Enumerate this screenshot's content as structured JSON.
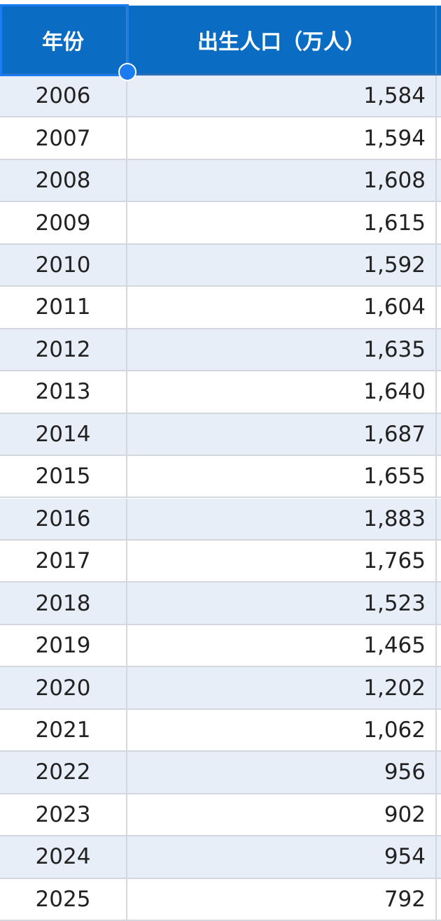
{
  "table": {
    "headers": [
      "年份",
      "出生人口（万人）"
    ],
    "rows": [
      [
        "2006",
        "1,584"
      ],
      [
        "2007",
        "1,594"
      ],
      [
        "2008",
        "1,608"
      ],
      [
        "2009",
        "1,615"
      ],
      [
        "2010",
        "1,592"
      ],
      [
        "2011",
        "1,604"
      ],
      [
        "2012",
        "1,635"
      ],
      [
        "2013",
        "1,640"
      ],
      [
        "2014",
        "1,687"
      ],
      [
        "2015",
        "1,655"
      ],
      [
        "2016",
        "1,883"
      ],
      [
        "2017",
        "1,765"
      ],
      [
        "2018",
        "1,523"
      ],
      [
        "2019",
        "1,465"
      ],
      [
        "2020",
        "1,202"
      ],
      [
        "2021",
        "1,062"
      ],
      [
        "2022",
        "956"
      ],
      [
        "2023",
        "902"
      ],
      [
        "2024",
        "954"
      ],
      [
        "2025",
        "792"
      ]
    ]
  }
}
